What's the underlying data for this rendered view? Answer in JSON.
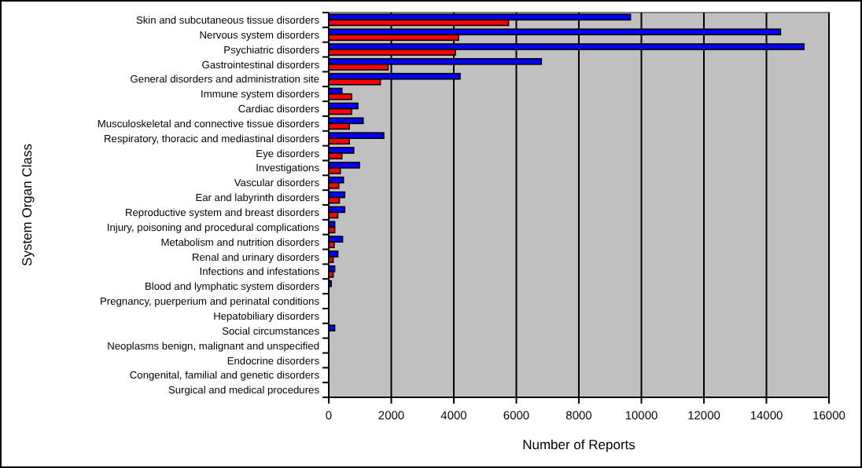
{
  "chart_data": {
    "type": "bar",
    "orientation": "horizontal",
    "xlabel": "Number of Reports",
    "ylabel": "System Organ Class",
    "categories": [
      "Skin and subcutaneous tissue disorders",
      "Nervous system disorders",
      "Psychiatric disorders",
      "Gastrointestinal disorders",
      "General disorders and administration site",
      "Immune system disorders",
      "Cardiac disorders",
      "Musculoskeletal and connective tissue disorders",
      "Respiratory, thoracic and mediastinal disorders",
      "Eye disorders",
      "Investigations",
      "Vascular disorders",
      "Ear and labyrinth disorders",
      "Reproductive system and breast disorders",
      "Injury, poisoning and procedural complications",
      "Metabolism and nutrition disorders",
      "Renal and urinary disorders",
      "Infections and infestations",
      "Blood and lymphatic system disorders",
      "Pregnancy, puerperium and perinatal conditions",
      "Hepatobiliary disorders",
      "Social circumstances",
      "Neoplasms benign, malignant and unspecified",
      "Endocrine disorders",
      "Congenital, familial and genetic disorders",
      "Surgical and medical procedures"
    ],
    "series": [
      {
        "color": "#0000ff",
        "values": [
          9650,
          14450,
          15200,
          6800,
          4200,
          420,
          930,
          1100,
          1760,
          800,
          980,
          470,
          510,
          510,
          190,
          440,
          290,
          190,
          80,
          0,
          0,
          190,
          0,
          0,
          0,
          0
        ]
      },
      {
        "color": "#ff0000",
        "values": [
          5750,
          4150,
          4050,
          1900,
          1650,
          730,
          730,
          660,
          660,
          420,
          370,
          320,
          340,
          290,
          190,
          170,
          140,
          140,
          0,
          0,
          0,
          0,
          0,
          0,
          0,
          0
        ]
      }
    ],
    "xlim": [
      0,
      16000
    ],
    "xticks": [
      0,
      2000,
      4000,
      6000,
      8000,
      10000,
      12000,
      14000,
      16000
    ],
    "grid": "x"
  }
}
